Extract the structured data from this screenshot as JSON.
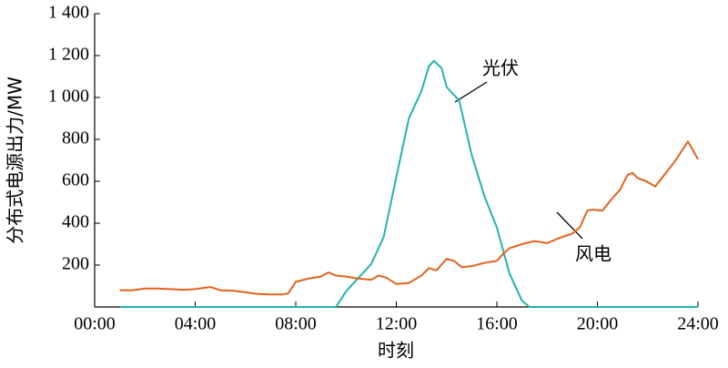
{
  "chart_data": {
    "type": "line",
    "y_label": "分布式电源出力/MW",
    "x_label": "时刻",
    "xlim": [
      0,
      24
    ],
    "ylim": [
      0,
      1400
    ],
    "xticks": [
      {
        "value": 0,
        "label": "00:00"
      },
      {
        "value": 4,
        "label": "04:00"
      },
      {
        "value": 8,
        "label": "08:00"
      },
      {
        "value": 12,
        "label": "12:00"
      },
      {
        "value": 16,
        "label": "16:00"
      },
      {
        "value": 20,
        "label": "20:00"
      },
      {
        "value": 24,
        "label": "24:00"
      }
    ],
    "yticks": [
      200,
      400,
      600,
      800,
      {
        "value": 1000,
        "label": "1 000"
      },
      {
        "value": 1200,
        "label": "1 200"
      },
      {
        "value": 1400,
        "label": "1 400"
      }
    ],
    "grid": false,
    "series": [
      {
        "name": "光伏",
        "color": "#22b3ad",
        "x": [
          1,
          9.6,
          10,
          10.5,
          11,
          11.5,
          12,
          12.5,
          13,
          13.3,
          13.5,
          13.8,
          14,
          14.5,
          15,
          15.5,
          16,
          16.5,
          17,
          17.3,
          24
        ],
        "values": [
          0,
          0,
          75,
          140,
          205,
          335,
          620,
          900,
          1030,
          1150,
          1175,
          1140,
          1050,
          985,
          725,
          530,
          380,
          160,
          30,
          0,
          0
        ]
      },
      {
        "name": "风电",
        "color": "#e2621f",
        "x": [
          1,
          1.5,
          2,
          2.5,
          3,
          3.5,
          4,
          4.6,
          5,
          5.5,
          6,
          6.5,
          7,
          7.5,
          7.7,
          8,
          8.5,
          9,
          9.3,
          9.6,
          10,
          10.5,
          11,
          11.3,
          11.6,
          12,
          12.5,
          13,
          13.3,
          13.6,
          14,
          14.3,
          14.6,
          15,
          15.5,
          16,
          16.3,
          16.5,
          17,
          17.5,
          18,
          18.5,
          19,
          19.3,
          19.6,
          19.8,
          20.2,
          20.6,
          20.9,
          21.2,
          21.4,
          21.6,
          21.95,
          22.3,
          23.05,
          23.6,
          24
        ],
        "values": [
          80,
          80,
          88,
          88,
          85,
          82,
          85,
          95,
          80,
          78,
          70,
          62,
          60,
          60,
          65,
          120,
          135,
          145,
          165,
          150,
          145,
          135,
          130,
          150,
          140,
          110,
          115,
          150,
          185,
          175,
          230,
          220,
          190,
          195,
          210,
          220,
          260,
          280,
          300,
          315,
          305,
          330,
          350,
          380,
          460,
          465,
          460,
          520,
          560,
          630,
          640,
          615,
          600,
          575,
          690,
          790,
          705
        ]
      }
    ]
  }
}
